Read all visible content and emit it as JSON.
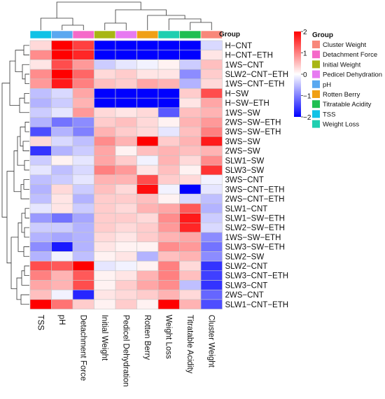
{
  "chart_data": {
    "type": "heatmap",
    "title": "",
    "columns": [
      "TSS",
      "pH",
      "Detachment Force",
      "Initial Weight",
      "Pedicel Dehydration",
      "Rotten Berry",
      "Weight Loss",
      "Titratable Acidity",
      "Cluster Weight"
    ],
    "column_groups": [
      "TSS",
      "pH",
      "Detachment Force",
      "Initial Weight",
      "Pedicel Dehydration",
      "Rotten Berry",
      "Weight Loss",
      "Titratable Acidity",
      "Cluster Weight"
    ],
    "rows": [
      "H−CNT",
      "H−CNT−ETH",
      "1WS−CNT",
      "SLW2−CNT−ETH",
      "1WS−CNT−ETH",
      "H−SW",
      "H−SW−ETH",
      "1WS−SW",
      "2WS−SW−ETH",
      "3WS−SW−ETH",
      "3WS−SW",
      "2WS−SW",
      "SLW1−SW",
      "SLW3−SW",
      "3WS−CNT",
      "3WS−CNT−ETH",
      "2WS−CNT−ETH",
      "SLW1−CNT",
      "SLW1−SW−ETH",
      "SLW2−SW−ETH",
      "1WS−SW−ETH",
      "SLW3−SW−ETH",
      "SLW2−SW",
      "SLW2−CNT",
      "SLW3−CNT−ETH",
      "SLW3−CNT",
      "2WS−CNT",
      "SLW1−CNT−ETH"
    ],
    "values": [
      [
        0.3,
        2.3,
        1.5,
        -2.3,
        -2.3,
        -2.3,
        -2.3,
        -2.3,
        -0.3
      ],
      [
        0.9,
        2.4,
        1.7,
        -2.3,
        -2.3,
        -2.3,
        -2.3,
        -2.3,
        0.2
      ],
      [
        0.2,
        1.4,
        0.8,
        -0.4,
        -0.2,
        -0.1,
        0.1,
        -0.4,
        0.5
      ],
      [
        0.9,
        2.1,
        1.2,
        0.3,
        0.4,
        0.2,
        0.2,
        -0.9,
        0.4
      ],
      [
        0.8,
        1.8,
        1.0,
        0.5,
        0.4,
        0.7,
        0.6,
        -0.6,
        0.3
      ],
      [
        -0.5,
        -0.3,
        0.7,
        -2.3,
        -2.3,
        -2.3,
        -2.3,
        0.4,
        1.4
      ],
      [
        -0.6,
        -0.4,
        0.6,
        -2.3,
        -2.3,
        -2.3,
        -2.3,
        0.2,
        0.7
      ],
      [
        -0.4,
        -0.2,
        0.8,
        0.3,
        0.2,
        0.3,
        -1.3,
        0.5,
        0.6
      ],
      [
        -0.6,
        -1.1,
        -0.9,
        0.4,
        0.5,
        0.3,
        0.1,
        0.6,
        0.8
      ],
      [
        -1.4,
        -0.6,
        -1.0,
        0.6,
        0.4,
        0.3,
        -0.2,
        0.5,
        1.0
      ],
      [
        0.3,
        -0.3,
        -0.5,
        0.9,
        0.6,
        2.3,
        0.4,
        0.6,
        1.8
      ],
      [
        -1.6,
        -0.6,
        -0.4,
        0.7,
        0.1,
        0.5,
        0.6,
        0.5,
        0.6
      ],
      [
        -0.4,
        0.1,
        -0.2,
        0.7,
        0.4,
        -0.1,
        0.6,
        0.3,
        0.9
      ],
      [
        -0.2,
        -0.5,
        -0.3,
        1.0,
        0.8,
        0.2,
        0.5,
        0.1,
        1.6
      ],
      [
        -0.5,
        -0.4,
        -0.2,
        0.6,
        0.6,
        1.4,
        0.4,
        0.3,
        -0.1
      ],
      [
        -0.6,
        0.3,
        -0.4,
        0.5,
        0.3,
        1.9,
        -0.1,
        -2.2,
        -0.2
      ],
      [
        -0.5,
        0.2,
        -0.6,
        0.4,
        0.4,
        0.5,
        0.1,
        -0.3,
        -0.5
      ],
      [
        -0.2,
        0.2,
        -0.4,
        0.4,
        0.3,
        0.6,
        0.7,
        1.3,
        -0.6
      ],
      [
        -0.8,
        -1.1,
        -0.7,
        0.4,
        0.4,
        0.3,
        0.9,
        1.8,
        -0.4
      ],
      [
        -0.4,
        -0.4,
        -0.6,
        0.4,
        0.3,
        0.4,
        0.8,
        1.7,
        -0.3
      ],
      [
        -0.6,
        -0.7,
        -0.6,
        0.3,
        0.2,
        0.4,
        0.6,
        0.7,
        -0.9
      ],
      [
        -0.9,
        -1.8,
        -0.6,
        0.2,
        0.1,
        0.1,
        0.9,
        0.8,
        -1.1
      ],
      [
        -0.6,
        -0.1,
        -0.5,
        0.1,
        0.2,
        -0.6,
        0.5,
        0.6,
        -0.9
      ],
      [
        1.4,
        1.3,
        2.3,
        -0.2,
        -0.1,
        0.1,
        1.0,
        0.3,
        -1.6
      ],
      [
        1.0,
        0.6,
        1.3,
        0.1,
        0.2,
        0.6,
        1.0,
        0.5,
        -1.5
      ],
      [
        0.7,
        0.6,
        1.4,
        0.1,
        0.4,
        0.7,
        0.9,
        -0.5,
        -1.6
      ],
      [
        0.5,
        -0.1,
        -1.7,
        0.2,
        0.3,
        0.4,
        0.6,
        0.3,
        -1.2
      ],
      [
        2.3,
        1.1,
        0.4,
        0.1,
        0.4,
        0.1,
        2.1,
        0.6,
        -1.4
      ]
    ],
    "color_scale": {
      "min": -2,
      "max": 2,
      "low": "#0000ff",
      "mid": "#ffffff",
      "high": "#ff0000",
      "ticks": [
        2,
        1,
        0,
        -1,
        -2
      ]
    },
    "legend": {
      "title": "Group",
      "position": "right",
      "entries": [
        {
          "label": "Cluster Weight",
          "color": "#f8877a"
        },
        {
          "label": "Detachment Force",
          "color": "#f569c9"
        },
        {
          "label": "Initial Weight",
          "color": "#a8b614"
        },
        {
          "label": "Pedicel Dehydration",
          "color": "#e77af1"
        },
        {
          "label": "pH",
          "color": "#5aa8f0"
        },
        {
          "label": "Rotten Berry",
          "color": "#f0a016"
        },
        {
          "label": "Titratable Acidity",
          "color": "#1fbf51"
        },
        {
          "label": "TSS",
          "color": "#10c2e6"
        },
        {
          "label": "Weight Loss",
          "color": "#1fcfb0"
        }
      ]
    },
    "group_bar_label": "Group",
    "dendrograms": {
      "rows": true,
      "columns": true
    }
  }
}
